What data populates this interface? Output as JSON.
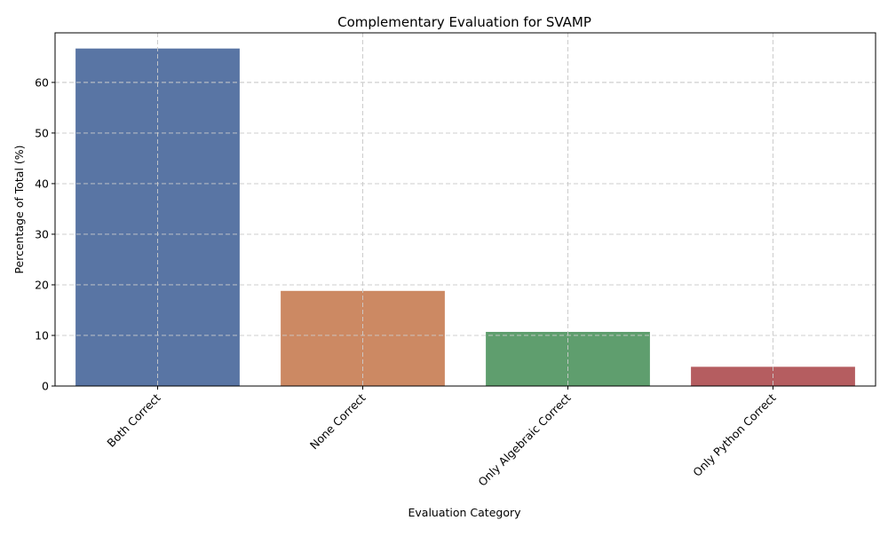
{
  "chart_data": {
    "type": "bar",
    "title": "Complementary Evaluation for SVAMP",
    "xlabel": "Evaluation Category",
    "ylabel": "Percentage of Total (%)",
    "categories": [
      "Both Correct",
      "None Correct",
      "Only Algebraic Correct",
      "Only Python Correct"
    ],
    "values": [
      66.7,
      18.8,
      10.7,
      3.8
    ],
    "colors": [
      "#5975a4",
      "#cc8963",
      "#5f9e6e",
      "#b55d60"
    ],
    "ylim": [
      0,
      69.8
    ],
    "yticks": [
      0,
      10,
      20,
      30,
      40,
      50,
      60
    ],
    "grid": true,
    "legend": "none"
  }
}
